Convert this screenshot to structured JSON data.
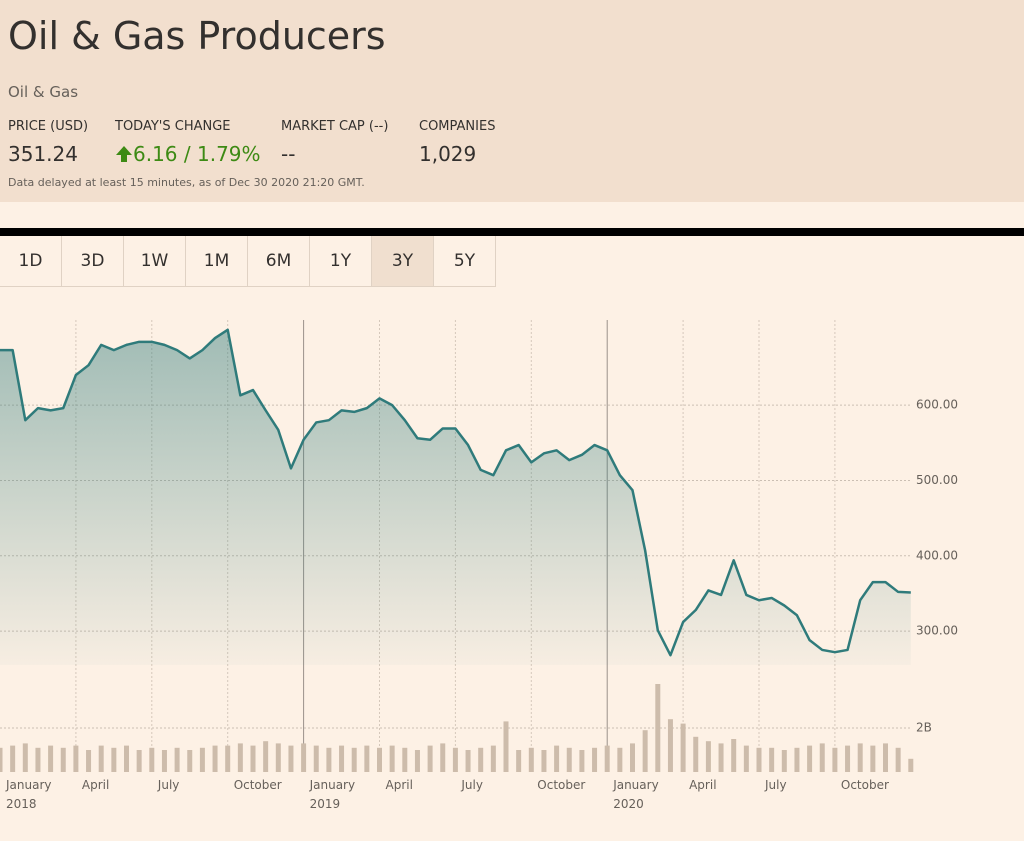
{
  "header": {
    "title": "Oil & Gas Producers",
    "sector": "Oil & Gas",
    "stats": [
      {
        "label": "PRICE (USD)",
        "value": "351.24"
      },
      {
        "label": "TODAY'S CHANGE",
        "value": "6.16 / 1.79%"
      },
      {
        "label": "MARKET CAP (--)",
        "value": "--"
      },
      {
        "label": "COMPANIES",
        "value": "1,029"
      }
    ],
    "note": "Data delayed at least 15 minutes, as of Dec 30 2020 21:20 GMT."
  },
  "tabs": [
    "1D",
    "3D",
    "1W",
    "1M",
    "6M",
    "1Y",
    "3Y",
    "5Y"
  ],
  "selected_tab": 6,
  "chart_data": {
    "type": "area",
    "color": "#2f7b7b",
    "volume_color": "#cdbcab",
    "categories": [
      "January 2018",
      null,
      null,
      null,
      null,
      null,
      "April",
      null,
      null,
      null,
      null,
      null,
      "July",
      null,
      null,
      null,
      null,
      null,
      "October",
      null,
      null,
      null,
      null,
      null,
      "January 2019",
      null,
      null,
      null,
      null,
      null,
      "April",
      null,
      null,
      null,
      null,
      null,
      "July",
      null,
      null,
      null,
      null,
      null,
      "October",
      null,
      null,
      null,
      null,
      null,
      "January 2020",
      null,
      null,
      null,
      null,
      null,
      "April",
      null,
      null,
      null,
      null,
      null,
      "July",
      null,
      null,
      null,
      null,
      null,
      "October",
      null,
      null,
      null,
      null,
      null,
      null
    ],
    "values": [
      673,
      673,
      580,
      596,
      593,
      596,
      640,
      653,
      680,
      673,
      680,
      684,
      684,
      680,
      673,
      662,
      673,
      689,
      700,
      613,
      620,
      593,
      567,
      516,
      554,
      577,
      580,
      593,
      591,
      596,
      609,
      600,
      580,
      556,
      554,
      569,
      569,
      547,
      514,
      507,
      540,
      547,
      524,
      536,
      540,
      527,
      534,
      547,
      540,
      507,
      487,
      407,
      301,
      268,
      312,
      328,
      354,
      348,
      394,
      348,
      341,
      344,
      334,
      321,
      288,
      275,
      272,
      275,
      341,
      365,
      365,
      352,
      351.24
    ],
    "volume": [
      1.1,
      1.2,
      1.3,
      1.1,
      1.2,
      1.1,
      1.2,
      1.0,
      1.2,
      1.1,
      1.2,
      1.0,
      1.1,
      1.0,
      1.1,
      1.0,
      1.1,
      1.2,
      1.2,
      1.3,
      1.2,
      1.4,
      1.3,
      1.2,
      1.3,
      1.2,
      1.1,
      1.2,
      1.1,
      1.2,
      1.1,
      1.2,
      1.1,
      1.0,
      1.2,
      1.3,
      1.1,
      1.0,
      1.1,
      1.2,
      2.3,
      1.0,
      1.1,
      1.0,
      1.2,
      1.1,
      1.0,
      1.1,
      1.2,
      1.1,
      1.3,
      1.9,
      4.0,
      2.4,
      2.2,
      1.6,
      1.4,
      1.3,
      1.5,
      1.2,
      1.1,
      1.1,
      1.0,
      1.1,
      1.2,
      1.3,
      1.1,
      1.2,
      1.3,
      1.2,
      1.3,
      1.1,
      0.6
    ],
    "ylim": [
      255,
      713
    ],
    "yticks": [
      {
        "value": 300,
        "label": "300.00"
      },
      {
        "value": 400,
        "label": "400.00"
      },
      {
        "value": 500,
        "label": "500.00"
      },
      {
        "value": 600,
        "label": "600.00"
      }
    ],
    "volume_lim": [
      0,
      4.5
    ],
    "volume_ticks": [
      {
        "value": 2,
        "label": "2B"
      }
    ],
    "grid": true
  }
}
